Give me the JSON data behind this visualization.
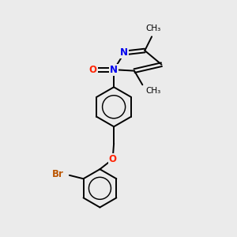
{
  "bg_color": "#ebebeb",
  "bond_color": "#000000",
  "bond_width": 1.4,
  "atom_colors": {
    "O": "#ff2200",
    "N": "#0000ee",
    "Br": "#bb5500",
    "C": "#000000"
  },
  "font_size_atom": 8.5,
  "font_size_methyl": 7.5
}
